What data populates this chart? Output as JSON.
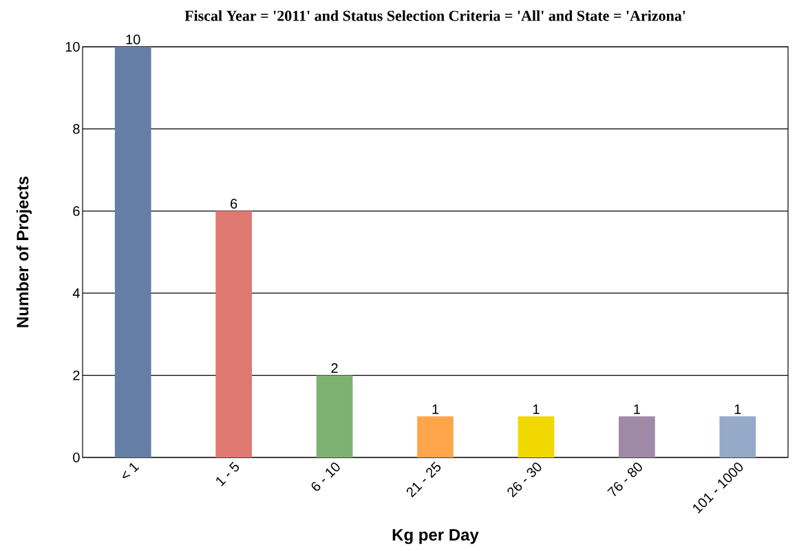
{
  "chart_data": {
    "type": "bar",
    "title": "Fiscal Year = '2011' and Status Selection Criteria = 'All' and State = 'Arizona'",
    "xlabel": "Kg per Day",
    "ylabel": "Number of Projects",
    "categories": [
      "< 1",
      "1 - 5",
      "6 - 10",
      "21 - 25",
      "26 - 30",
      "76 - 80",
      "101 - 1000"
    ],
    "values": [
      10,
      6,
      2,
      1,
      1,
      1,
      1
    ],
    "colors": [
      "#647ea6",
      "#e07872",
      "#7db272",
      "#ffa64d",
      "#f0d800",
      "#9e8aa6",
      "#95aac8"
    ],
    "ylim": [
      0,
      10
    ],
    "yticks": [
      0,
      2,
      4,
      6,
      8,
      10
    ],
    "grid": "y",
    "data_labels": true
  }
}
